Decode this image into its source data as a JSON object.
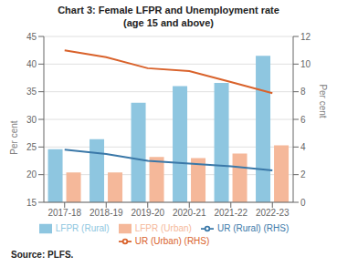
{
  "chart_data": {
    "type": "bar",
    "title": "Chart 3: Female LFPR and Unemployment rate",
    "subtitle": "(age 15 and above)",
    "categories": [
      "2017-18",
      "2018-19",
      "2019-20",
      "2020-21",
      "2021-22",
      "2022-23"
    ],
    "series": [
      {
        "name": "LFPR (Rural)",
        "color": "#8ec6e0",
        "values": [
          24.6,
          26.4,
          33.0,
          36.0,
          36.6,
          41.5
        ]
      },
      {
        "name": "LFPR (Urban)",
        "color": "#f5b89a",
        "values": [
          20.4,
          20.4,
          23.2,
          23.0,
          23.8,
          25.3
        ]
      },
      {
        "name": "UR (Rural) (RHS)",
        "type": "line",
        "axis": "y2",
        "color": "#3a78a8",
        "values": [
          3.8,
          3.5,
          3.0,
          2.8,
          2.6,
          2.3
        ]
      },
      {
        "name": "UR (Urban) (RHS)",
        "type": "line",
        "axis": "y2",
        "color": "#d9622b",
        "values": [
          11.0,
          10.5,
          9.7,
          9.5,
          8.7,
          7.9
        ]
      }
    ],
    "ylabel": "Per cent",
    "y2label": "Per cent",
    "ylim": [
      15,
      45
    ],
    "yticks": [
      15,
      20,
      25,
      30,
      35,
      40,
      45
    ],
    "y2lim": [
      0,
      12
    ],
    "y2ticks": [
      0,
      2,
      4,
      6,
      8,
      10,
      12
    ],
    "grid": true,
    "legend": "bottom",
    "annotations": [
      "Source: PLFS."
    ]
  }
}
